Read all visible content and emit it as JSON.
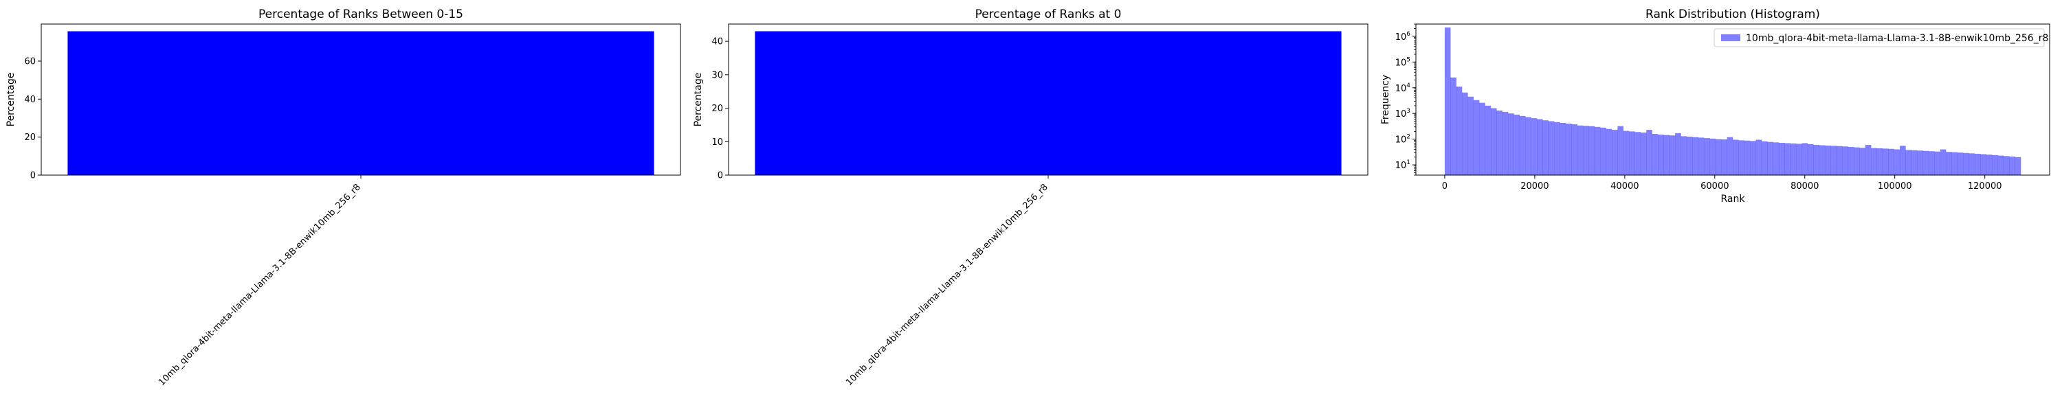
{
  "figure": {
    "background": "#ffffff"
  },
  "chart_data": [
    {
      "type": "bar",
      "title": "Percentage of Ranks Between 0-15",
      "xlabel": "",
      "ylabel": "Percentage",
      "categories": [
        "10mb_qlora-4bit-meta-llama-Llama-3.1-8B-enwik10mb_256_r8"
      ],
      "values": [
        75.7
      ],
      "ylim": [
        0,
        79.5
      ],
      "yticks": [
        0,
        20,
        40,
        60
      ],
      "color": "#0000ff"
    },
    {
      "type": "bar",
      "title": "Percentage of Ranks at 0",
      "xlabel": "",
      "ylabel": "Percentage",
      "categories": [
        "10mb_qlora-4bit-meta-llama-Llama-3.1-8B-enwik10mb_256_r8"
      ],
      "values": [
        43.0
      ],
      "ylim": [
        0,
        45.15
      ],
      "yticks": [
        0,
        10,
        20,
        30,
        40
      ],
      "color": "#0000ff"
    },
    {
      "type": "histogram",
      "title": "Rank Distribution (Histogram)",
      "xlabel": "Rank",
      "ylabel": "Frequency",
      "yscale": "log",
      "xlim": [
        -6400,
        134400
      ],
      "ylim": [
        4,
        3000000
      ],
      "xticks": [
        0,
        20000,
        40000,
        60000,
        80000,
        100000,
        120000
      ],
      "yticks": [
        {
          "value": 10,
          "mantissa": "10",
          "exp": "1"
        },
        {
          "value": 100,
          "mantissa": "10",
          "exp": "2"
        },
        {
          "value": 1000,
          "mantissa": "10",
          "exp": "3"
        },
        {
          "value": 10000,
          "mantissa": "10",
          "exp": "4"
        },
        {
          "value": 100000,
          "mantissa": "10",
          "exp": "5"
        },
        {
          "value": 1000000,
          "mantissa": "10",
          "exp": "6"
        }
      ],
      "bin_start": 0,
      "bin_width": 1280,
      "series": [
        {
          "name": "10mb_qlora-4bit-meta-llama-Llama-3.1-8B-enwik10mb_256_r8",
          "color": "#0000ff",
          "alpha": 0.5,
          "counts": [
            2200000,
            25000,
            11000,
            6500,
            4500,
            3300,
            2600,
            2000,
            1600,
            1300,
            1150,
            1000,
            900,
            800,
            720,
            650,
            600,
            540,
            500,
            460,
            430,
            400,
            380,
            340,
            330,
            320,
            300,
            280,
            250,
            230,
            320,
            210,
            200,
            190,
            180,
            230,
            160,
            150,
            145,
            140,
            170,
            130,
            125,
            120,
            115,
            110,
            105,
            100,
            98,
            120,
            95,
            90,
            88,
            85,
            95,
            82,
            78,
            75,
            72,
            70,
            68,
            66,
            70,
            64,
            60,
            58,
            56,
            55,
            54,
            52,
            50,
            48,
            46,
            60,
            45,
            44,
            43,
            42,
            40,
            55,
            38,
            37,
            36,
            35,
            34,
            33,
            40,
            32,
            31,
            30,
            29,
            28,
            27,
            26,
            25,
            24,
            23,
            22,
            21,
            20
          ]
        }
      ],
      "legend_location": "upper right"
    }
  ]
}
